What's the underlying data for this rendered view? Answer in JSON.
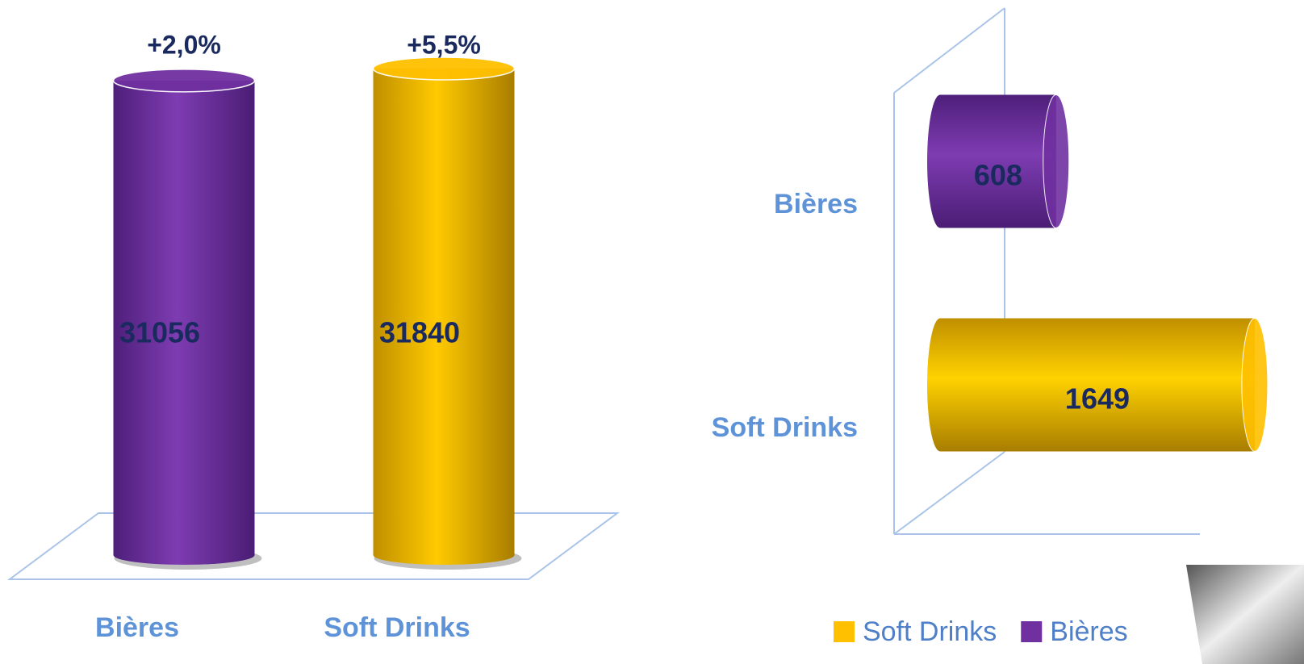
{
  "chart_data": [
    {
      "type": "bar",
      "categories": [
        "Bières",
        "Soft Drinks"
      ],
      "values": [
        31056,
        31840
      ],
      "colors": [
        "#7030a0",
        "#ffc000"
      ],
      "annotations": [
        "+2,0%",
        "+5,5%"
      ],
      "ylim": [
        0,
        33000
      ]
    },
    {
      "type": "barh",
      "categories": [
        "Bières",
        "Soft Drinks"
      ],
      "series": [
        {
          "name": "Soft Drinks",
          "color": "#ffc000",
          "values": [
            null,
            1649
          ]
        },
        {
          "name": "Bières",
          "color": "#7030a0",
          "values": [
            608,
            null
          ]
        }
      ],
      "xlim": [
        0,
        1700
      ]
    }
  ]
}
